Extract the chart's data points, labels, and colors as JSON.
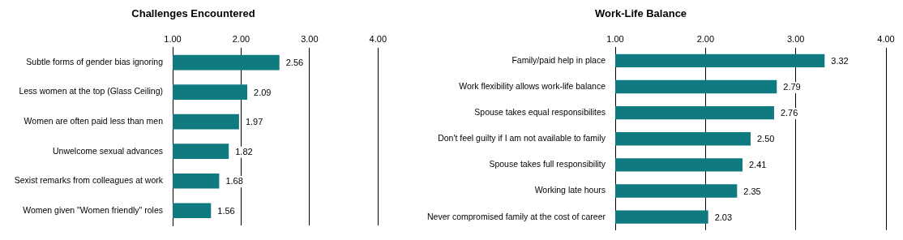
{
  "chart_data": [
    {
      "type": "bar",
      "orientation": "horizontal",
      "title": "Challenges Encountered",
      "categories": [
        "Subtle forms of gender bias ignoring",
        "Less women at the top (Glass Ceiling)",
        "Women are often paid less than men",
        "Unwelcome sexual advances",
        "Sexist remarks from colleagues at work",
        "Women given \"Women friendly\" roles"
      ],
      "values": [
        2.56,
        2.09,
        1.97,
        1.82,
        1.68,
        1.56
      ],
      "value_labels": [
        "2.56",
        "2.09",
        "1.97",
        "1.82",
        "1.68",
        "1.56"
      ],
      "color": "#0f7a80",
      "xlim": [
        1,
        4
      ],
      "xticks": [
        {
          "value": 1,
          "label": "1.00"
        },
        {
          "value": 2,
          "label": "2.00"
        },
        {
          "value": 3,
          "label": "3.00"
        },
        {
          "value": 4,
          "label": "4.00"
        }
      ],
      "grid": "x",
      "legend": false
    },
    {
      "type": "bar",
      "orientation": "horizontal",
      "title": "Work-Life Balance",
      "categories": [
        "Family/paid help in place",
        "Work flexibility allows work-life balance",
        "Spouse takes equal responsibilites",
        "Don't feel guilty if I am not available to family",
        "Spouse takes full responsibility",
        "Working late hours",
        "Never compromised family at the cost of career"
      ],
      "values": [
        3.32,
        2.79,
        2.76,
        2.5,
        2.41,
        2.35,
        2.03
      ],
      "value_labels": [
        "3.32",
        "2.79",
        "2.76",
        "2.50",
        "2.41",
        "2.35",
        "2.03"
      ],
      "color": "#0f7a80",
      "xlim": [
        1,
        4
      ],
      "xticks": [
        {
          "value": 1,
          "label": "1.00"
        },
        {
          "value": 2,
          "label": "2.00"
        },
        {
          "value": 3,
          "label": "3.00"
        },
        {
          "value": 4,
          "label": "4.00"
        }
      ],
      "grid": "x",
      "legend": false
    }
  ]
}
